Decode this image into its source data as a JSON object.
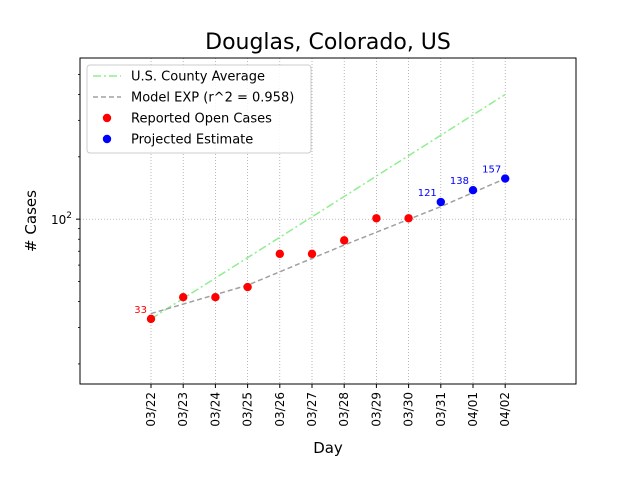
{
  "chart_data": {
    "type": "scatter",
    "title": "Douglas, Colorado, US",
    "xlabel": "Day",
    "ylabel": "# Cases",
    "y_scale": "log",
    "y_tick_label": "10",
    "y_tick_exponent": "2",
    "ylim": [
      16,
      600
    ],
    "categories": [
      "03/22",
      "03/23",
      "03/24",
      "03/25",
      "03/26",
      "03/27",
      "03/28",
      "03/29",
      "03/30",
      "03/31",
      "04/01",
      "04/02"
    ],
    "grid": true,
    "legend_position": "upper-left",
    "series": [
      {
        "name": "U.S. County Average",
        "style": "dash-dot line",
        "color": "#90ee90",
        "points": [
          [
            "03/22",
            33
          ],
          [
            "04/02",
            400
          ]
        ]
      },
      {
        "name": "Model EXP (r^2 = 0.958)",
        "style": "dashed line",
        "color": "#a0a0a0",
        "points": [
          [
            "03/22",
            35
          ],
          [
            "03/25",
            48
          ],
          [
            "03/28",
            75
          ],
          [
            "03/31",
            115
          ],
          [
            "04/02",
            157
          ]
        ]
      },
      {
        "name": "Reported Open Cases",
        "style": "markers",
        "color": "#ff0000",
        "points": [
          [
            "03/22",
            33
          ],
          [
            "03/23",
            42
          ],
          [
            "03/24",
            42
          ],
          [
            "03/25",
            47
          ],
          [
            "03/26",
            68
          ],
          [
            "03/27",
            68
          ],
          [
            "03/28",
            79
          ],
          [
            "03/29",
            101
          ],
          [
            "03/30",
            101
          ]
        ]
      },
      {
        "name": "Projected Estimate",
        "style": "markers",
        "color": "#0000ff",
        "points": [
          [
            "03/31",
            121
          ],
          [
            "04/01",
            138
          ],
          [
            "04/02",
            157
          ]
        ]
      }
    ],
    "annotations": [
      {
        "x": "03/22",
        "y": 33,
        "text": "33",
        "color": "#ff0000"
      },
      {
        "x": "03/31",
        "y": 121,
        "text": "121",
        "color": "#0000ff"
      },
      {
        "x": "04/01",
        "y": 138,
        "text": "138",
        "color": "#0000ff"
      },
      {
        "x": "04/02",
        "y": 157,
        "text": "157",
        "color": "#0000ff"
      }
    ]
  }
}
